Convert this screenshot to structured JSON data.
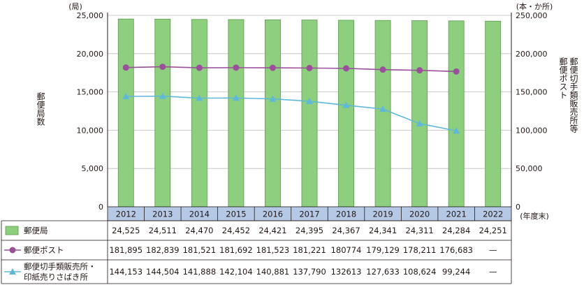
{
  "chart_data": {
    "type": "bar",
    "categories": [
      "2012",
      "2013",
      "2014",
      "2015",
      "2016",
      "2017",
      "2018",
      "2019",
      "2020",
      "2021",
      "2022"
    ],
    "left_axis": {
      "unit": "(局)",
      "label": "郵便局数",
      "ylim": [
        0,
        25000
      ],
      "ticks": [
        "0",
        "5,000",
        "10,000",
        "15,000",
        "20,000",
        "25,000"
      ]
    },
    "right_axis": {
      "unit": "(本・か所)",
      "label": "郵便ポスト 郵便切手類販売所等",
      "ylim": [
        0,
        250000
      ],
      "ticks": [
        "0",
        "50,000",
        "100,000",
        "150,000",
        "200,000",
        "250,000"
      ]
    },
    "x_unit": "(年度末)",
    "series": [
      {
        "name": "郵便局",
        "kind": "bar",
        "axis": "left",
        "color": "#8dcf7e",
        "values": [
          24525,
          24511,
          24470,
          24452,
          24421,
          24395,
          24367,
          24341,
          24311,
          24284,
          24251
        ],
        "labels": [
          "24,525",
          "24,511",
          "24,470",
          "24,452",
          "24,421",
          "24,395",
          "24,367",
          "24,341",
          "24,311",
          "24,284",
          "24,251"
        ]
      },
      {
        "name": "郵便ポスト",
        "kind": "line",
        "marker": "circle",
        "axis": "right",
        "color": "#9b4f9a",
        "values": [
          181895,
          182839,
          181521,
          181692,
          181523,
          181221,
          180774,
          179129,
          178211,
          176683,
          null
        ],
        "labels": [
          "181,895",
          "182,839",
          "181,521",
          "181,692",
          "181,523",
          "181,221",
          "180774",
          "179,129",
          "178,211",
          "176,683",
          "—"
        ]
      },
      {
        "name": "郵便切手類販売所・印紙売りさばき所",
        "name_lines": [
          "郵便切手類販売所・",
          "印紙売りさばき所"
        ],
        "kind": "line",
        "marker": "triangle",
        "axis": "right",
        "color": "#5fb8d8",
        "values": [
          144153,
          144504,
          141888,
          142104,
          140881,
          137790,
          132613,
          127633,
          108624,
          99244,
          null
        ],
        "labels": [
          "144,153",
          "144,504",
          "141,888",
          "142,104",
          "140,881",
          "137,790",
          "132613",
          "127,633",
          "108,624",
          "99,244",
          "—"
        ]
      }
    ],
    "grid": "horizontal",
    "colors": {
      "axis_band": "#b5c9e6",
      "bar_edge": "#5a9a4e",
      "line_color": "#231815"
    }
  }
}
